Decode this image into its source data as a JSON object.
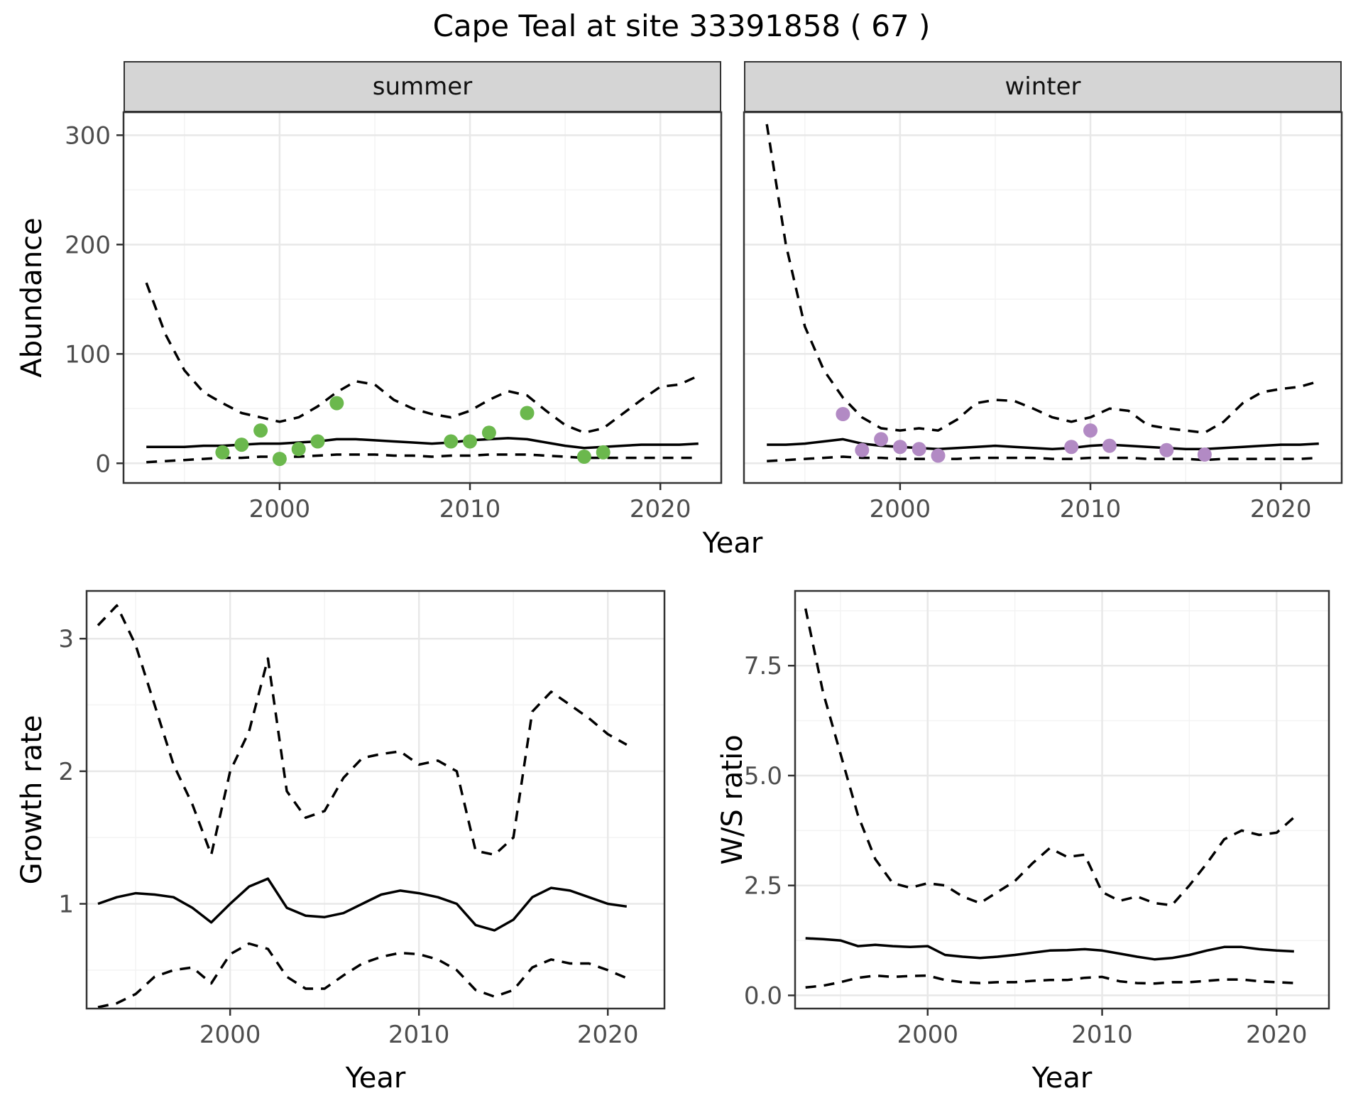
{
  "title": "Cape Teal at site 33391858 ( 67 )",
  "facets": [
    "summer",
    "winter"
  ],
  "axes": {
    "abundance": "Abundance",
    "year": "Year",
    "growth_rate": "Growth rate",
    "ws_ratio": "W/S ratio"
  },
  "colors": {
    "summer_point": "#6bb84d",
    "winter_point": "#b28ac4"
  },
  "chart_data": [
    {
      "id": "abundance-summer",
      "type": "line",
      "facet": "summer",
      "xlabel": "Year",
      "ylabel": "Abundance",
      "xlim": [
        1991.8,
        2023.2
      ],
      "ylim": [
        -18,
        321
      ],
      "xticks": [
        2000,
        2010,
        2020
      ],
      "xtick_labels": [
        "2000",
        "2010",
        "2020"
      ],
      "yticks": [
        0,
        100,
        200,
        300
      ],
      "ytick_labels": [
        "0",
        "100",
        "200",
        "300"
      ],
      "x_minor": [
        1995,
        2005,
        2015
      ],
      "y_minor": [
        50,
        150,
        250
      ],
      "x": [
        1993,
        1994,
        1995,
        1996,
        1997,
        1998,
        1999,
        2000,
        2001,
        2002,
        2003,
        2004,
        2005,
        2006,
        2007,
        2008,
        2009,
        2010,
        2011,
        2012,
        2013,
        2014,
        2015,
        2016,
        2017,
        2018,
        2019,
        2020,
        2021,
        2022
      ],
      "series": [
        {
          "name": "fit",
          "style": "solid",
          "values": [
            15,
            15,
            15,
            16,
            16,
            17,
            18,
            18,
            19,
            20,
            22,
            22,
            21,
            20,
            19,
            18,
            19,
            21,
            22,
            23,
            22,
            19,
            16,
            14,
            15,
            16,
            17,
            17,
            17,
            18
          ]
        },
        {
          "name": "upper_ci",
          "style": "dashed",
          "values": [
            165,
            118,
            85,
            65,
            55,
            46,
            42,
            38,
            42,
            52,
            65,
            75,
            72,
            58,
            50,
            45,
            42,
            48,
            58,
            66,
            62,
            48,
            35,
            28,
            32,
            45,
            58,
            70,
            72,
            80
          ]
        },
        {
          "name": "lower_ci",
          "style": "dashed",
          "values": [
            1,
            2,
            3,
            4,
            5,
            5,
            6,
            6,
            6,
            7,
            8,
            8,
            8,
            7,
            7,
            6,
            7,
            7,
            8,
            8,
            8,
            7,
            6,
            5,
            5,
            5,
            5,
            5,
            5,
            5
          ]
        }
      ],
      "points": {
        "name": "observed-counts",
        "color_key": "summer_point",
        "x": [
          1997,
          1998,
          1999,
          2000,
          2001,
          2002,
          2003,
          2009,
          2010,
          2011,
          2013,
          2016,
          2017
        ],
        "y": [
          10,
          17,
          30,
          4,
          13,
          20,
          55,
          20,
          20,
          28,
          46,
          6,
          10
        ]
      }
    },
    {
      "id": "abundance-winter",
      "type": "line",
      "facet": "winter",
      "xlabel": "Year",
      "ylabel": "Abundance",
      "xlim": [
        1991.8,
        2023.2
      ],
      "ylim": [
        -18,
        321
      ],
      "xticks": [
        2000,
        2010,
        2020
      ],
      "xtick_labels": [
        "2000",
        "2010",
        "2020"
      ],
      "yticks": [
        0,
        100,
        200,
        300
      ],
      "ytick_labels": [
        "0",
        "100",
        "200",
        "300"
      ],
      "x_minor": [
        1995,
        2005,
        2015
      ],
      "y_minor": [
        50,
        150,
        250
      ],
      "x": [
        1993,
        1994,
        1995,
        1996,
        1997,
        1998,
        1999,
        2000,
        2001,
        2002,
        2003,
        2004,
        2005,
        2006,
        2007,
        2008,
        2009,
        2010,
        2011,
        2012,
        2013,
        2014,
        2015,
        2016,
        2017,
        2018,
        2019,
        2020,
        2021,
        2022
      ],
      "series": [
        {
          "name": "fit",
          "style": "solid",
          "values": [
            17,
            17,
            18,
            20,
            22,
            18,
            16,
            15,
            14,
            13,
            14,
            15,
            16,
            15,
            14,
            13,
            14,
            16,
            17,
            16,
            15,
            14,
            13,
            13,
            14,
            15,
            16,
            17,
            17,
            18
          ]
        },
        {
          "name": "upper_ci",
          "style": "dashed",
          "values": [
            310,
            200,
            125,
            85,
            60,
            42,
            32,
            30,
            32,
            30,
            40,
            55,
            58,
            57,
            50,
            42,
            38,
            42,
            50,
            48,
            35,
            32,
            30,
            28,
            38,
            55,
            65,
            68,
            70,
            75
          ]
        },
        {
          "name": "lower_ci",
          "style": "dashed",
          "values": [
            2,
            3,
            4,
            5,
            6,
            5,
            5,
            4,
            4,
            4,
            4,
            5,
            5,
            5,
            5,
            4,
            4,
            5,
            5,
            5,
            4,
            4,
            4,
            3,
            4,
            4,
            4,
            4,
            4,
            5
          ]
        }
      ],
      "points": {
        "name": "observed-counts",
        "color_key": "winter_point",
        "x": [
          1997,
          1998,
          1999,
          2000,
          2001,
          2002,
          2009,
          2010,
          2011,
          2014,
          2016
        ],
        "y": [
          45,
          12,
          22,
          15,
          13,
          7,
          15,
          30,
          16,
          12,
          8
        ]
      }
    },
    {
      "id": "growth-rate",
      "type": "line",
      "facet": null,
      "xlabel": "Year",
      "ylabel": "Growth rate",
      "xlim": [
        1992.4,
        2023
      ],
      "ylim": [
        0.21,
        3.36
      ],
      "xticks": [
        2000,
        2010,
        2020
      ],
      "xtick_labels": [
        "2000",
        "2010",
        "2020"
      ],
      "yticks": [
        1,
        2,
        3
      ],
      "ytick_labels": [
        "1",
        "2",
        "3"
      ],
      "x_minor": [
        1995,
        2005,
        2015
      ],
      "y_minor": [
        0.5,
        1.5,
        2.5
      ],
      "x": [
        1993,
        1994,
        1995,
        1996,
        1997,
        1998,
        1999,
        2000,
        2001,
        2002,
        2003,
        2004,
        2005,
        2006,
        2007,
        2008,
        2009,
        2010,
        2011,
        2012,
        2013,
        2014,
        2015,
        2016,
        2017,
        2018,
        2019,
        2020,
        2021
      ],
      "series": [
        {
          "name": "fit",
          "style": "solid",
          "values": [
            1.0,
            1.05,
            1.08,
            1.07,
            1.05,
            0.97,
            0.86,
            1.0,
            1.13,
            1.19,
            0.97,
            0.91,
            0.9,
            0.93,
            1.0,
            1.07,
            1.1,
            1.08,
            1.05,
            1.0,
            0.84,
            0.8,
            0.88,
            1.05,
            1.12,
            1.1,
            1.05,
            1.0,
            0.98
          ]
        },
        {
          "name": "upper_ci",
          "style": "dashed",
          "values": [
            3.1,
            3.25,
            2.95,
            2.5,
            2.05,
            1.75,
            1.37,
            2.0,
            2.3,
            2.85,
            1.85,
            1.65,
            1.7,
            1.95,
            2.1,
            2.13,
            2.15,
            2.05,
            2.08,
            2.0,
            1.4,
            1.37,
            1.5,
            2.45,
            2.6,
            2.5,
            2.4,
            2.28,
            2.2
          ]
        },
        {
          "name": "lower_ci",
          "style": "dashed",
          "values": [
            0.22,
            0.25,
            0.32,
            0.45,
            0.5,
            0.52,
            0.4,
            0.62,
            0.7,
            0.66,
            0.45,
            0.36,
            0.36,
            0.46,
            0.55,
            0.6,
            0.63,
            0.62,
            0.58,
            0.5,
            0.35,
            0.3,
            0.35,
            0.52,
            0.58,
            0.55,
            0.55,
            0.5,
            0.44
          ]
        }
      ]
    },
    {
      "id": "ws-ratio",
      "type": "line",
      "facet": null,
      "xlabel": "Year",
      "ylabel": "W/S ratio",
      "xlim": [
        1992.4,
        2023
      ],
      "ylim": [
        -0.3,
        9.2
      ],
      "xticks": [
        2000,
        2010,
        2020
      ],
      "xtick_labels": [
        "2000",
        "2010",
        "2020"
      ],
      "yticks": [
        0,
        2.5,
        5,
        7.5
      ],
      "ytick_labels": [
        "0.0",
        "2.5",
        "5.0",
        "7.5"
      ],
      "x_minor": [
        1995,
        2005,
        2015
      ],
      "y_minor": [
        1.25,
        3.75,
        6.25,
        8.75
      ],
      "x": [
        1993,
        1994,
        1995,
        1996,
        1997,
        1998,
        1999,
        2000,
        2001,
        2002,
        2003,
        2004,
        2005,
        2006,
        2007,
        2008,
        2009,
        2010,
        2011,
        2012,
        2013,
        2014,
        2015,
        2016,
        2017,
        2018,
        2019,
        2020,
        2021
      ],
      "series": [
        {
          "name": "fit",
          "style": "solid",
          "values": [
            1.3,
            1.28,
            1.25,
            1.12,
            1.15,
            1.12,
            1.1,
            1.12,
            0.92,
            0.88,
            0.85,
            0.88,
            0.92,
            0.97,
            1.02,
            1.03,
            1.05,
            1.02,
            0.95,
            0.88,
            0.82,
            0.85,
            0.92,
            1.02,
            1.1,
            1.1,
            1.05,
            1.02,
            1.0
          ]
        },
        {
          "name": "upper_ci",
          "style": "dashed",
          "values": [
            8.8,
            6.9,
            5.5,
            4.1,
            3.1,
            2.55,
            2.45,
            2.55,
            2.5,
            2.25,
            2.1,
            2.35,
            2.6,
            3.0,
            3.35,
            3.15,
            3.2,
            2.35,
            2.15,
            2.25,
            2.1,
            2.05,
            2.5,
            3.0,
            3.55,
            3.75,
            3.65,
            3.7,
            4.05
          ]
        },
        {
          "name": "lower_ci",
          "style": "dashed",
          "values": [
            0.18,
            0.22,
            0.3,
            0.4,
            0.45,
            0.42,
            0.44,
            0.45,
            0.35,
            0.3,
            0.28,
            0.3,
            0.3,
            0.33,
            0.35,
            0.35,
            0.4,
            0.42,
            0.32,
            0.28,
            0.27,
            0.3,
            0.3,
            0.33,
            0.36,
            0.36,
            0.32,
            0.3,
            0.28
          ]
        }
      ]
    }
  ]
}
